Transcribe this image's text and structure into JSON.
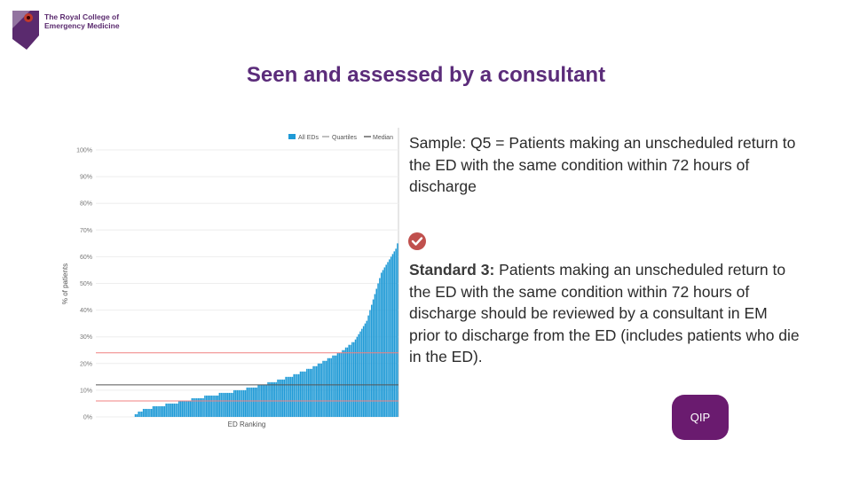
{
  "logo": {
    "line1": "The Royal College of",
    "line2": "Emergency Medicine"
  },
  "title": "Seen and assessed by a consultant",
  "sample_text": "Sample: Q5 = Patients making an unscheduled return to the ED with the same condition within 72 hours of discharge",
  "standard": {
    "label": "Standard 3:",
    "text": " Patients making an unscheduled return to the ED with the same condition within 72 hours of discharge should be reviewed by a consultant in EM prior to discharge from the ED (includes patients who die in the ED)."
  },
  "qip_label": "QIP",
  "colors": {
    "bar": "#1f9ad6",
    "quartile": "#f08080",
    "median": "#555555",
    "title": "#5b2c7a",
    "qip": "#6a1b6f"
  },
  "icons": {
    "check": "check-circle-icon",
    "logo": "rcem-crest-icon"
  },
  "chart_data": {
    "type": "bar",
    "xlabel": "ED Ranking",
    "ylabel": "% of patients",
    "ylim": [
      0,
      100
    ],
    "yticks": [
      "0%",
      "10%",
      "20%",
      "30%",
      "40%",
      "50%",
      "60%",
      "70%",
      "80%",
      "90%",
      "100%"
    ],
    "legend": [
      "All EDs",
      "Quartiles",
      "Median"
    ],
    "legend_position": "top-right",
    "grid": true,
    "series": [
      {
        "name": "All EDs",
        "values": [
          0,
          0,
          0,
          0,
          0,
          0,
          0,
          0,
          0,
          0,
          0,
          0,
          0,
          0,
          0,
          0,
          0,
          0,
          0,
          0,
          0,
          0,
          0,
          0,
          1,
          1,
          2,
          2,
          2,
          3,
          3,
          3,
          3,
          3,
          3,
          4,
          4,
          4,
          4,
          4,
          4,
          4,
          4,
          5,
          5,
          5,
          5,
          5,
          5,
          5,
          5,
          6,
          6,
          6,
          6,
          6,
          6,
          6,
          6,
          7,
          7,
          7,
          7,
          7,
          7,
          7,
          7,
          8,
          8,
          8,
          8,
          8,
          8,
          8,
          8,
          8,
          9,
          9,
          9,
          9,
          9,
          9,
          9,
          9,
          9,
          10,
          10,
          10,
          10,
          10,
          10,
          10,
          10,
          11,
          11,
          11,
          11,
          11,
          11,
          11,
          12,
          12,
          12,
          12,
          12,
          12,
          13,
          13,
          13,
          13,
          13,
          13,
          14,
          14,
          14,
          14,
          14,
          15,
          15,
          15,
          15,
          15,
          16,
          16,
          16,
          16,
          17,
          17,
          17,
          17,
          18,
          18,
          18,
          18,
          19,
          19,
          19,
          20,
          20,
          20,
          21,
          21,
          21,
          22,
          22,
          22,
          23,
          23,
          23,
          24,
          24,
          24,
          25,
          25,
          26,
          26,
          27,
          27,
          28,
          28,
          29,
          30,
          31,
          32,
          33,
          34,
          35,
          36,
          38,
          40,
          42,
          44,
          46,
          48,
          50,
          52,
          54,
          55,
          56,
          57,
          58,
          59,
          60,
          61,
          62,
          63,
          65
        ]
      }
    ],
    "reference_lines": {
      "quartile_lower": 6,
      "median": 12,
      "quartile_upper": 24
    }
  }
}
